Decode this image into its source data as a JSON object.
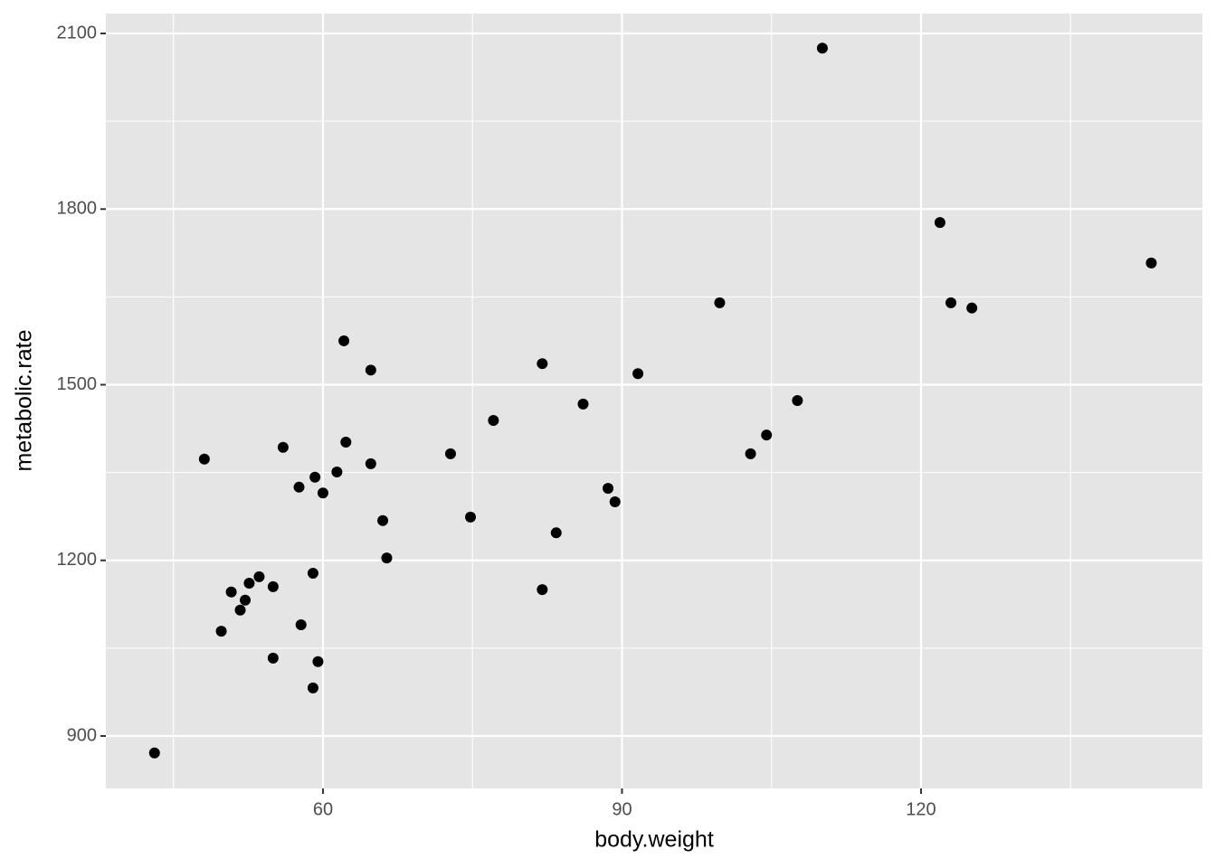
{
  "chart_data": {
    "type": "scatter",
    "x_label": "body.weight",
    "y_label": "metabolic.rate",
    "x": [
      43.1,
      48.1,
      49.8,
      50.8,
      51.7,
      52.2,
      52.6,
      53.6,
      55.0,
      55.0,
      56.0,
      57.6,
      57.8,
      59.0,
      59.0,
      59.2,
      59.5,
      60.0,
      61.4,
      62.1,
      62.3,
      64.8,
      64.8,
      66.0,
      66.4,
      72.8,
      74.8,
      77.1,
      82.0,
      82.0,
      83.4,
      86.1,
      88.6,
      89.3,
      91.6,
      99.8,
      102.9,
      104.5,
      107.6,
      110.1,
      121.9,
      123.0,
      125.1,
      143.1
    ],
    "values": [
      871,
      1373,
      1079,
      1146,
      1115,
      1132,
      1161,
      1172,
      1155,
      1033,
      1393,
      1325,
      1090,
      1178,
      982,
      1342,
      1027,
      1315,
      1351,
      1575,
      1402,
      1525,
      1365,
      1268,
      1204,
      1382,
      1274,
      1439,
      1536,
      1150,
      1247,
      1467,
      1323,
      1300,
      1519,
      1640,
      1382,
      1414,
      1473,
      2075,
      1777,
      1640,
      1631,
      1708
    ],
    "color": "#000000",
    "xlim": [
      38.22,
      148.23
    ],
    "ylim": [
      810.4,
      2134
    ],
    "xticks": [
      60,
      90,
      120
    ],
    "yticks": [
      900,
      1200,
      1500,
      1800,
      2100
    ],
    "x_minor_ticks": [
      45,
      75,
      105,
      135
    ],
    "y_minor_ticks": [
      1050,
      1350,
      1650,
      1950
    ],
    "grid": true
  }
}
